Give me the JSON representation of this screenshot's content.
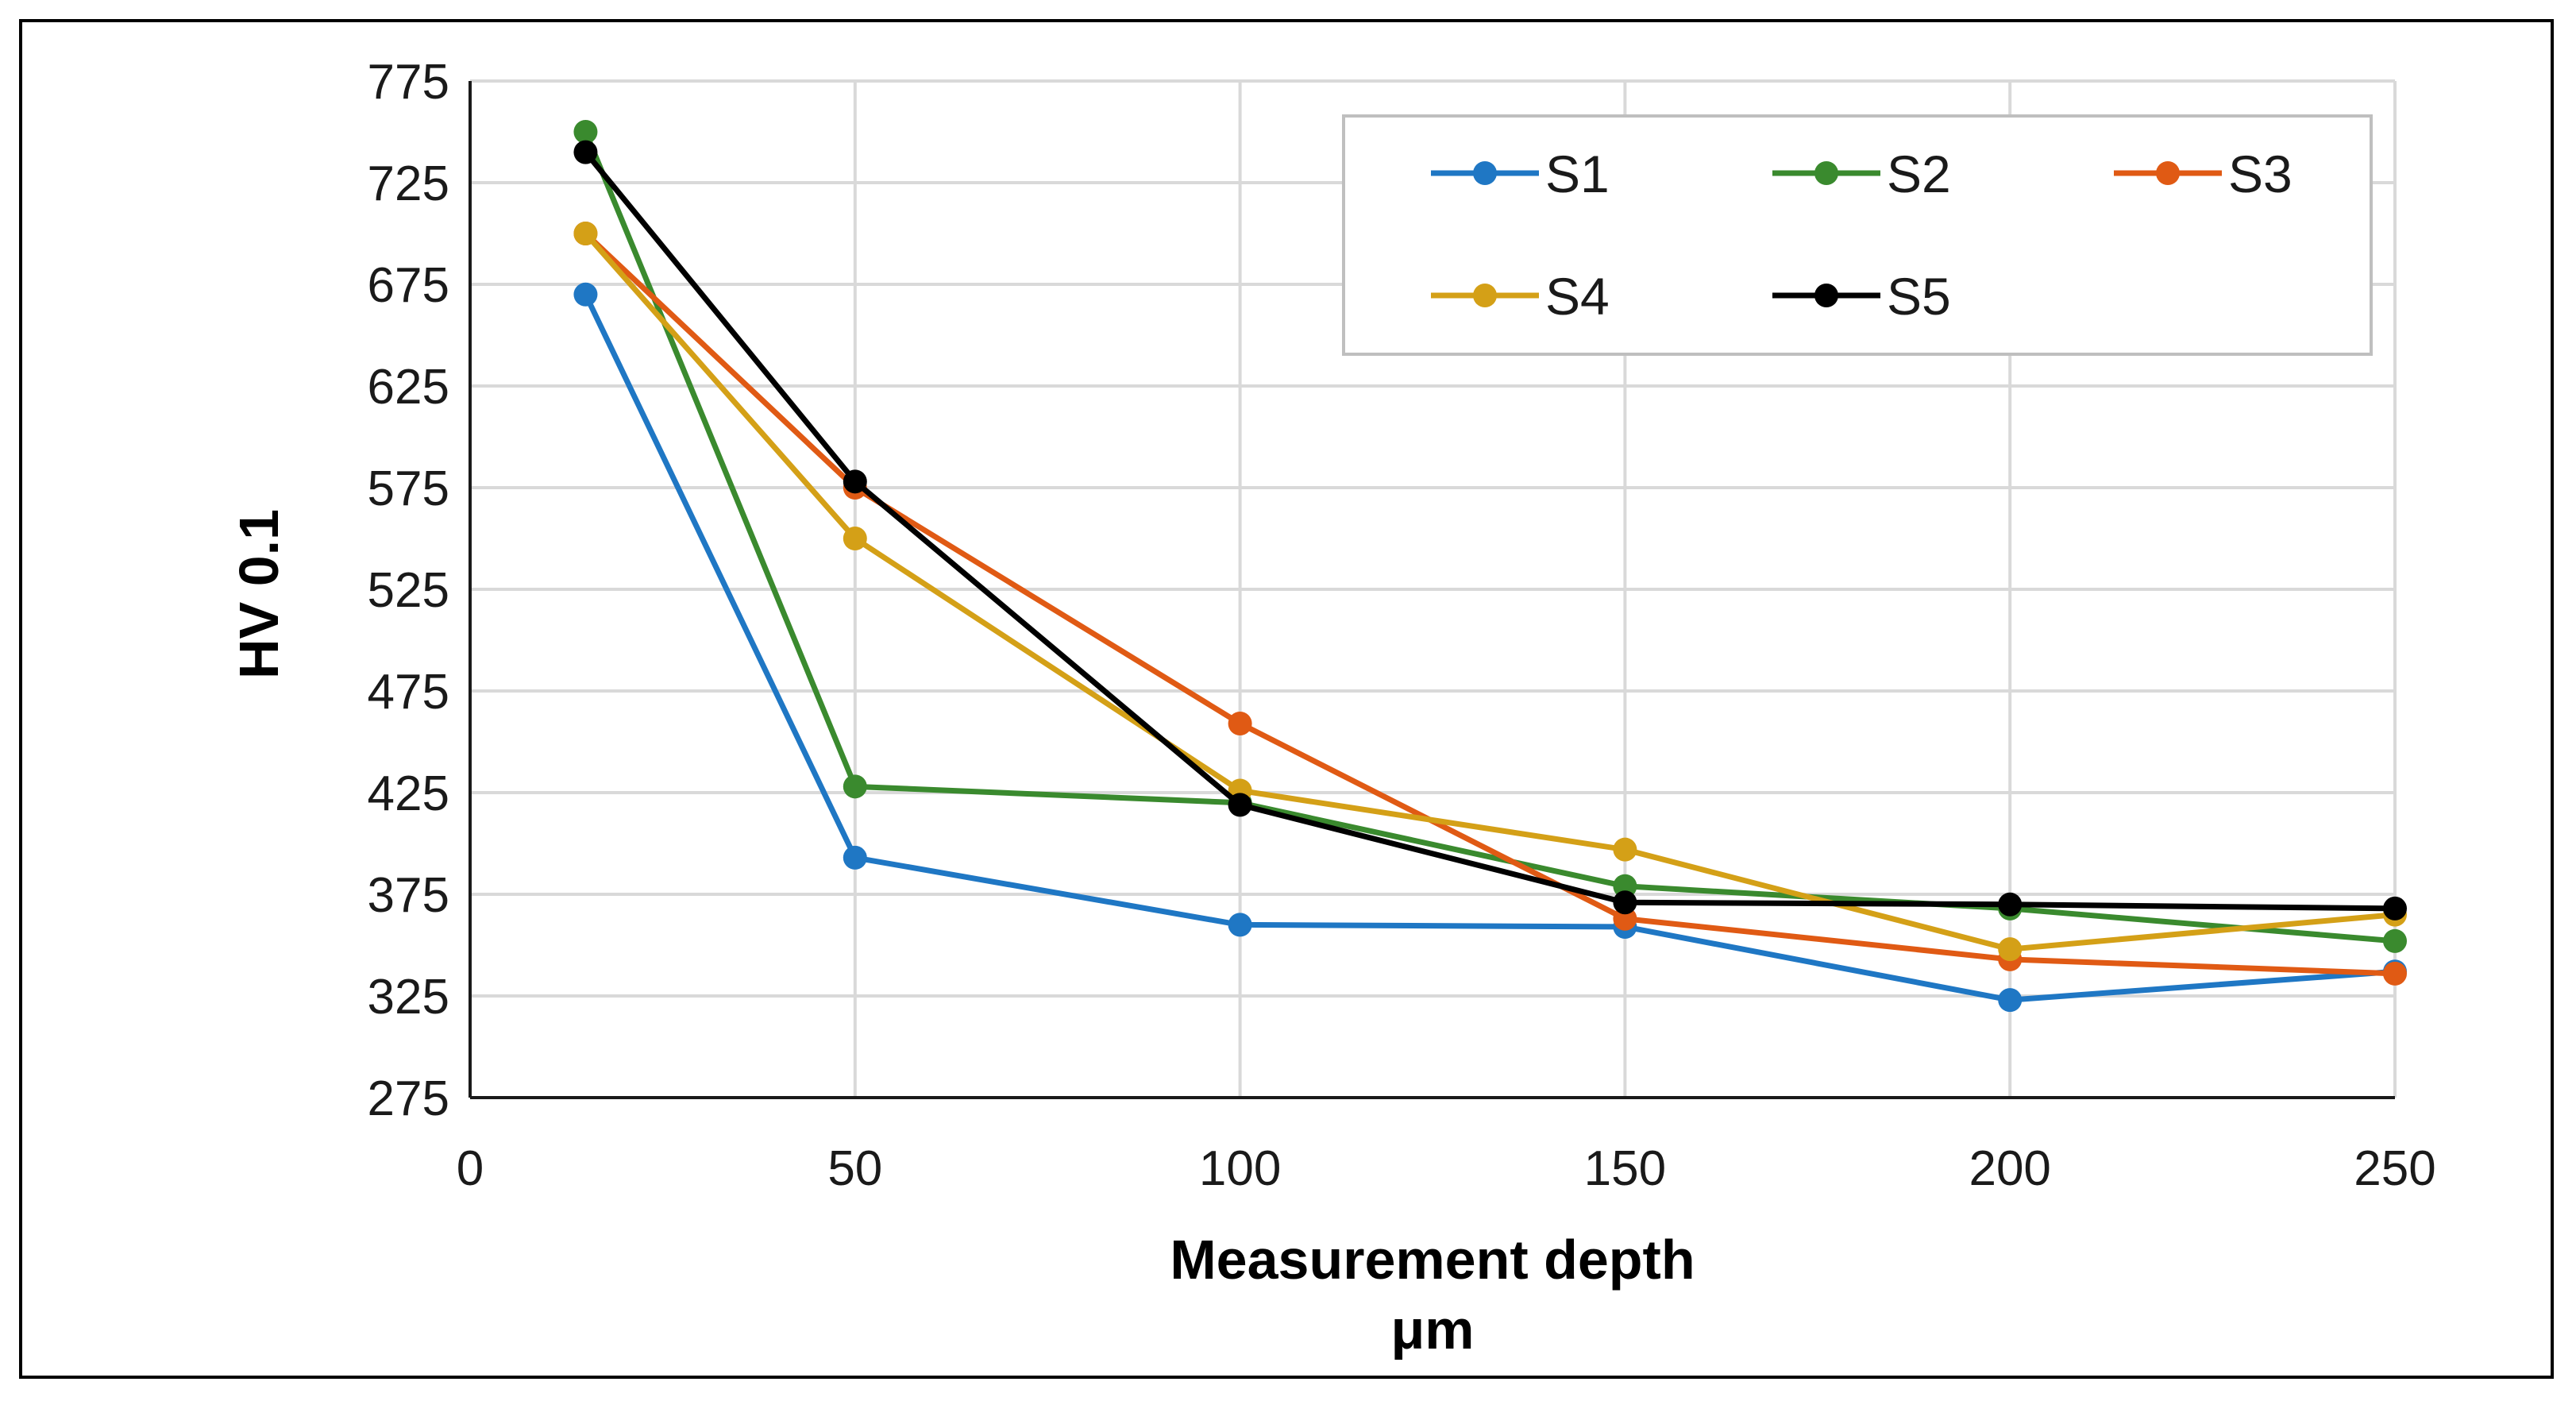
{
  "chart_data": {
    "type": "line",
    "title": "",
    "xlabel": "Measurement depth",
    "xlabel_unit": "μm",
    "ylabel": "HV 0.1",
    "xlim": [
      0,
      250
    ],
    "ylim": [
      275,
      775
    ],
    "xticks": [
      0,
      50,
      100,
      150,
      200,
      250
    ],
    "yticks": [
      275,
      325,
      375,
      425,
      475,
      525,
      575,
      625,
      675,
      725,
      775
    ],
    "grid": true,
    "legend_position": "top-right",
    "x": [
      15,
      50,
      100,
      150,
      200,
      250
    ],
    "series": [
      {
        "name": "S1",
        "color": "#1f77c4",
        "values": [
          670,
          393,
          360,
          359,
          323,
          337
        ]
      },
      {
        "name": "S2",
        "color": "#3a8a2e",
        "values": [
          750,
          428,
          420,
          379,
          368,
          352
        ]
      },
      {
        "name": "S3",
        "color": "#e05a14",
        "values": [
          700,
          575,
          459,
          363,
          343,
          336
        ]
      },
      {
        "name": "S4",
        "color": "#d4a017",
        "values": [
          700,
          550,
          426,
          397,
          348,
          365
        ]
      },
      {
        "name": "S5",
        "color": "#000000",
        "values": [
          740,
          578,
          419,
          371,
          370,
          368
        ]
      }
    ]
  }
}
